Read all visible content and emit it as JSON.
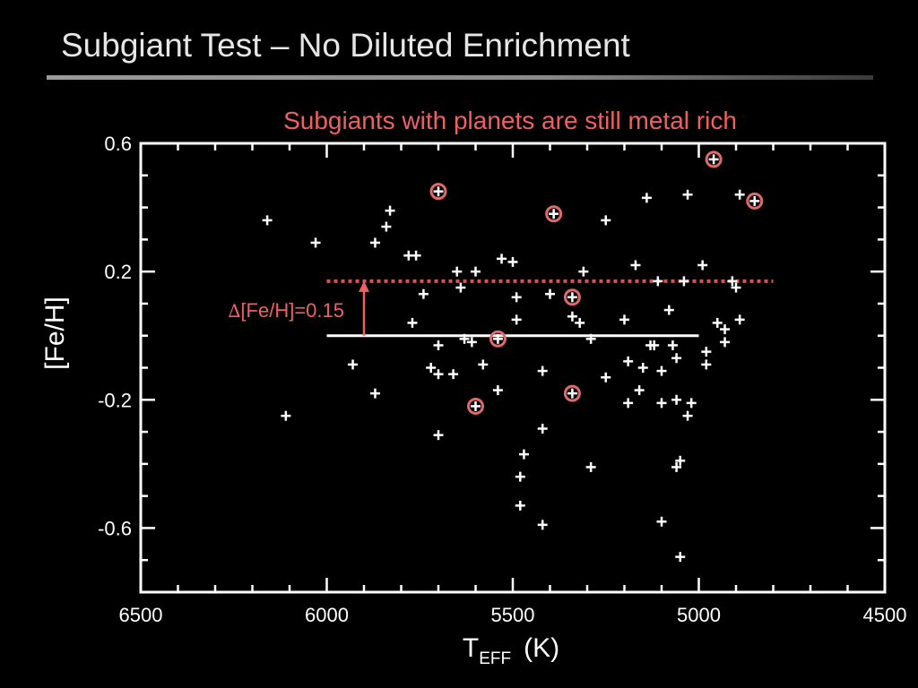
{
  "slide": {
    "title": "Subgiant Test – No Diluted Enrichment"
  },
  "colors": {
    "background": "#000000",
    "foreground": "#ffffff",
    "accent": "#f06060",
    "planet_marker": "#e06a6a"
  },
  "chart_data": {
    "type": "scatter",
    "title": "Subgiants with planets are still metal rich",
    "xlabel_main": "T",
    "xlabel_sub": "EFF",
    "xlabel_unit": "(K)",
    "ylabel": "[Fe/H]",
    "xlim": [
      6500,
      4500
    ],
    "ylim": [
      -0.8,
      0.6
    ],
    "x_inverted": true,
    "x_ticks": [
      6500,
      6000,
      5500,
      5000,
      4500
    ],
    "y_ticks": [
      0.6,
      0.2,
      -0.2,
      -0.6
    ],
    "grid": false,
    "series": [
      {
        "marker": "plus",
        "color": "#ffffff",
        "points": [
          [
            6160,
            0.36
          ],
          [
            6030,
            0.29
          ],
          [
            6110,
            -0.25
          ],
          [
            5930,
            -0.09
          ],
          [
            5870,
            -0.18
          ],
          [
            5870,
            0.29
          ],
          [
            5840,
            0.34
          ],
          [
            5830,
            0.39
          ],
          [
            5780,
            0.25
          ],
          [
            5760,
            0.25
          ],
          [
            5770,
            0.04
          ],
          [
            5740,
            0.13
          ],
          [
            5720,
            -0.1
          ],
          [
            5700,
            -0.31
          ],
          [
            5700,
            -0.12
          ],
          [
            5700,
            -0.03
          ],
          [
            5660,
            -0.12
          ],
          [
            5650,
            0.2
          ],
          [
            5640,
            0.15
          ],
          [
            5630,
            -0.01
          ],
          [
            5610,
            -0.02
          ],
          [
            5600,
            0.2
          ],
          [
            5580,
            -0.09
          ],
          [
            5540,
            -0.17
          ],
          [
            5530,
            0.24
          ],
          [
            5500,
            0.23
          ],
          [
            5490,
            0.12
          ],
          [
            5490,
            0.05
          ],
          [
            5480,
            -0.44
          ],
          [
            5480,
            -0.53
          ],
          [
            5470,
            -0.37
          ],
          [
            5420,
            -0.59
          ],
          [
            5420,
            -0.11
          ],
          [
            5420,
            -0.29
          ],
          [
            5400,
            0.13
          ],
          [
            5340,
            0.06
          ],
          [
            5320,
            0.04
          ],
          [
            5310,
            0.2
          ],
          [
            5290,
            -0.41
          ],
          [
            5290,
            -0.01
          ],
          [
            5250,
            -0.13
          ],
          [
            5250,
            0.36
          ],
          [
            5200,
            0.05
          ],
          [
            5190,
            -0.08
          ],
          [
            5190,
            -0.21
          ],
          [
            5170,
            0.22
          ],
          [
            5160,
            -0.17
          ],
          [
            5150,
            -0.1
          ],
          [
            5140,
            0.43
          ],
          [
            5130,
            -0.03
          ],
          [
            5120,
            -0.03
          ],
          [
            5110,
            0.17
          ],
          [
            5100,
            -0.21
          ],
          [
            5100,
            -0.11
          ],
          [
            5100,
            -0.58
          ],
          [
            5080,
            0.08
          ],
          [
            5070,
            -0.03
          ],
          [
            5060,
            -0.41
          ],
          [
            5060,
            -0.2
          ],
          [
            5060,
            -0.07
          ],
          [
            5050,
            -0.39
          ],
          [
            5050,
            -0.69
          ],
          [
            5040,
            0.17
          ],
          [
            5030,
            -0.25
          ],
          [
            5030,
            0.44
          ],
          [
            5020,
            -0.21
          ],
          [
            4990,
            0.22
          ],
          [
            4980,
            -0.05
          ],
          [
            4980,
            -0.09
          ],
          [
            4950,
            0.04
          ],
          [
            4930,
            -0.02
          ],
          [
            4930,
            0.02
          ],
          [
            4910,
            0.17
          ],
          [
            4900,
            0.15
          ],
          [
            4890,
            0.44
          ],
          [
            4890,
            0.05
          ]
        ]
      },
      {
        "marker": "circled-plus",
        "color": "#e06a6a",
        "points": [
          [
            5700,
            0.45
          ],
          [
            5600,
            -0.22
          ],
          [
            5540,
            -0.01
          ],
          [
            5390,
            0.38
          ],
          [
            5340,
            0.12
          ],
          [
            5340,
            -0.18
          ],
          [
            4960,
            0.55
          ],
          [
            4850,
            0.42
          ]
        ]
      }
    ],
    "reference_lines": [
      {
        "style": "solid",
        "color": "#ffffff",
        "x": [
          6000,
          5000
        ],
        "y": 0.0
      },
      {
        "style": "dotted",
        "color": "#e05050",
        "x": [
          6000,
          4800
        ],
        "y": 0.17
      }
    ],
    "annotation": {
      "text_delta": "∆",
      "text_rest": "[Fe/H]=0.15",
      "arrow_x": 5900,
      "arrow_from": 0.0,
      "arrow_to": 0.17,
      "color": "#f06060"
    }
  }
}
